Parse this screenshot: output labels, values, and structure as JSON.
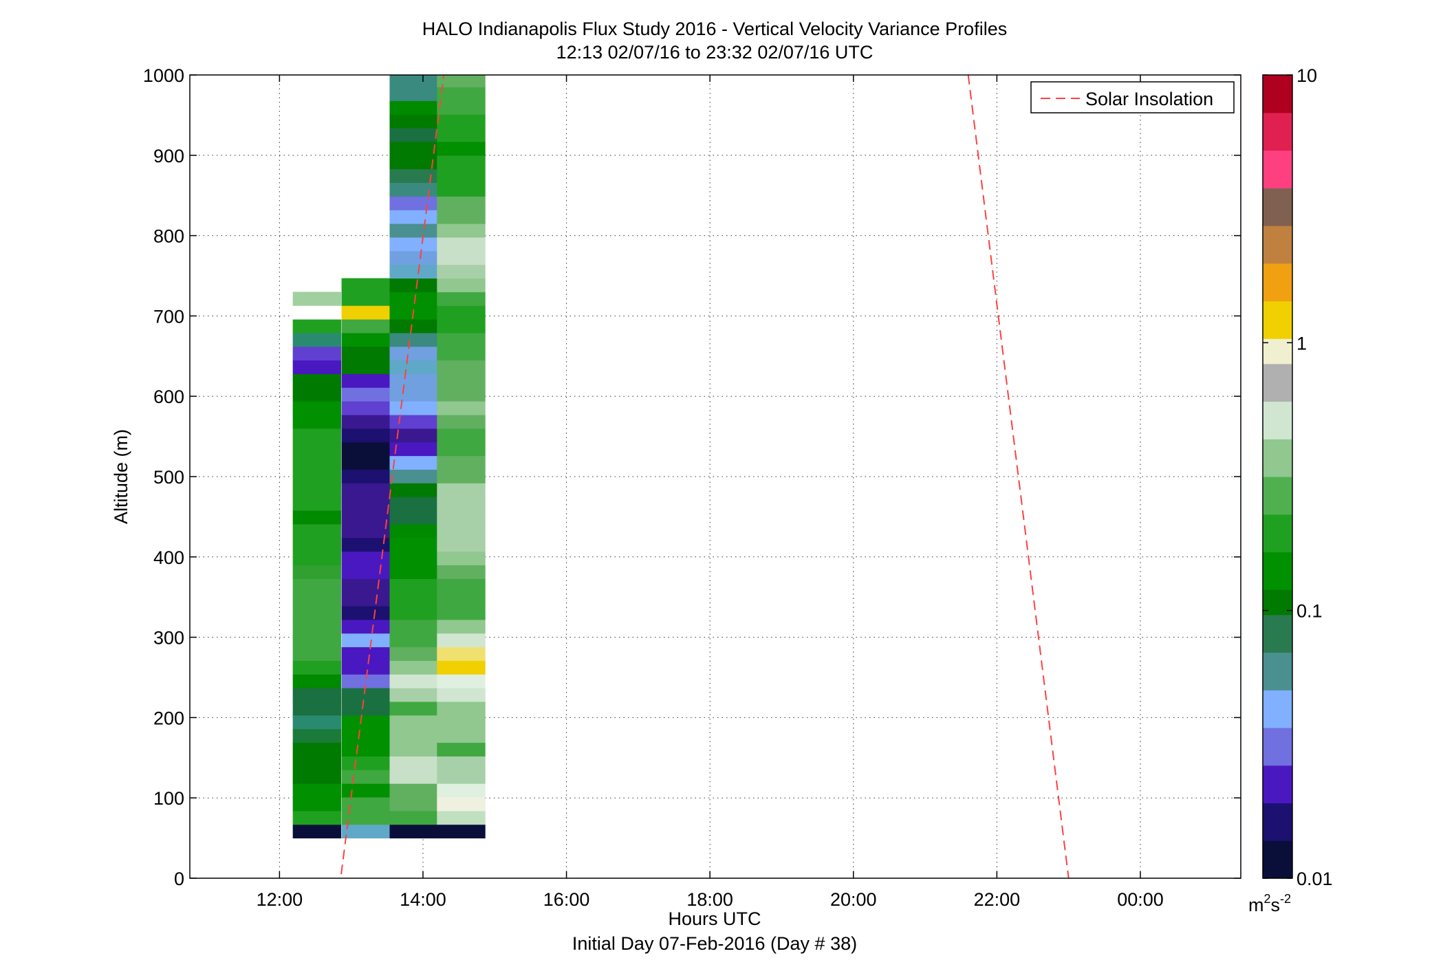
{
  "chart_data": {
    "type": "heatmap",
    "title": "HALO Indianapolis Flux Study 2016 - Vertical Velocity Variance Profiles",
    "subtitle": "12:13 02/07/16 to 23:32 02/07/16  UTC",
    "xlabel": "Hours UTC",
    "xlabel2": "Initial Day 07-Feb-2016 (Day # 38)",
    "ylabel": "Altitude (m)",
    "colorbar_units": "m²s⁻²",
    "colorbar_label_parts": {
      "m": "m",
      "sup1": "2",
      "s": "s",
      "sup2": "-2"
    },
    "xlim": [
      10.75,
      25.4
    ],
    "ylim": [
      0,
      1000
    ],
    "x_ticks": [
      {
        "value": 12,
        "label": "12:00"
      },
      {
        "value": 14,
        "label": "14:00"
      },
      {
        "value": 16,
        "label": "16:00"
      },
      {
        "value": 18,
        "label": "18:00"
      },
      {
        "value": 20,
        "label": "20:00"
      },
      {
        "value": 22,
        "label": "22:00"
      },
      {
        "value": 24,
        "label": "00:00"
      }
    ],
    "y_ticks": [
      {
        "value": 0,
        "label": "0"
      },
      {
        "value": 100,
        "label": "100"
      },
      {
        "value": 200,
        "label": "200"
      },
      {
        "value": 300,
        "label": "300"
      },
      {
        "value": 400,
        "label": "400"
      },
      {
        "value": 500,
        "label": "500"
      },
      {
        "value": 600,
        "label": "600"
      },
      {
        "value": 700,
        "label": "700"
      },
      {
        "value": 800,
        "label": "800"
      },
      {
        "value": 900,
        "label": "900"
      },
      {
        "value": 1000,
        "label": "1000"
      }
    ],
    "colorbar": {
      "scale": "log",
      "range": [
        0.01,
        10
      ],
      "ticks": [
        {
          "value": 0.01,
          "label": "0.01"
        },
        {
          "value": 0.1,
          "label": "0.1"
        },
        {
          "value": 1,
          "label": "1"
        },
        {
          "value": 10,
          "label": "10"
        }
      ],
      "colormap": [
        "#0a0f3a",
        "#1c1070",
        "#4a18c0",
        "#7070e0",
        "#80b0ff",
        "#4a9090",
        "#2a7a50",
        "#007a00",
        "#009000",
        "#20a020",
        "#50b050",
        "#90c890",
        "#d0e6d0",
        "#b0b0b0",
        "#f0f0d0",
        "#f0d000",
        "#f0a010",
        "#c08040",
        "#806050",
        "#ff4080",
        "#e02050",
        "#b00020"
      ]
    },
    "grid": true,
    "legend": {
      "position": "top-right",
      "entries": [
        {
          "label": "Solar Insolation",
          "color": "#ff4040",
          "style": "dashed"
        }
      ]
    },
    "series": [
      {
        "name": "Solar Insolation",
        "lines": [
          {
            "x": [
              12.86,
              14.29
            ],
            "y": [
              5,
              1000
            ]
          },
          {
            "x": [
              21.6,
              23.0
            ],
            "y": [
              1000,
              0
            ]
          }
        ]
      }
    ],
    "x_bins": [
      {
        "center": 12.52,
        "width": 0.67
      },
      {
        "center": 13.2,
        "width": 0.67
      },
      {
        "center": 13.87,
        "width": 0.67
      },
      {
        "center": 14.53,
        "width": 0.67
      }
    ],
    "altitude_bins": [
      50,
      67,
      83,
      100,
      117,
      133,
      150,
      167,
      183,
      200,
      217,
      233,
      250,
      267,
      283,
      300,
      317,
      333,
      350,
      367,
      383,
      400,
      417,
      433,
      450,
      467,
      483,
      500,
      517,
      533,
      550,
      567,
      583,
      600,
      617,
      633,
      650,
      667,
      683,
      700,
      717,
      733,
      750,
      767,
      783,
      800,
      817,
      833,
      850,
      867,
      883,
      900,
      917,
      933,
      950,
      967,
      983
    ],
    "columns": [
      {
        "colors": [
          "#0a0f3a",
          "#20a020",
          "#009000",
          "#009000",
          "#007a00",
          "#007a00",
          "#007a00",
          "#1a7a3a",
          "#2a8a70",
          "#1a7040",
          "#1a7040",
          "#008a00",
          "#20a020",
          "#40a840",
          "#40a840",
          "#40a840",
          "#40a840",
          "#40a840",
          "#40a840",
          "#30a030",
          "#20a020",
          "#20a020",
          "#20a020",
          "#008a00",
          "#20a020",
          "#20a020",
          "#20a020",
          "#20a020",
          "#20a020",
          "#20a020",
          "#009000",
          "#009000",
          "#007a00",
          "#007a00",
          "#4a18c0",
          "#6040d0",
          "#2a8a70",
          "#20a020",
          "#ffffff",
          "#a0d0a0"
        ]
      },
      {
        "colors": [
          "#60a8c8",
          "#40a840",
          "#40a840",
          "#009000",
          "#40a840",
          "#20a020",
          "#009000",
          "#009000",
          "#009000",
          "#1a7040",
          "#1a7040",
          "#7070e0",
          "#4a18c0",
          "#4a18c0",
          "#80b0ff",
          "#4a18c0",
          "#1c1070",
          "#3a1890",
          "#3a1890",
          "#4a18c0",
          "#4a18c0",
          "#1c1070",
          "#3a1890",
          "#3a1890",
          "#3a1890",
          "#3a1890",
          "#1c1070",
          "#0a0f3a",
          "#0a0f3a",
          "#1c1070",
          "#3a1890",
          "#6040d0",
          "#7070e0",
          "#4a18c0",
          "#007a00",
          "#007a00",
          "#009000",
          "#40a840",
          "#f0d000",
          "#20a020",
          "#20a020"
        ]
      },
      {
        "colors": [
          "#0a0f3a",
          "#40a840",
          "#60b060",
          "#60b060",
          "#c8e0c8",
          "#c8e0c8",
          "#90c890",
          "#90c890",
          "#90c890",
          "#40a840",
          "#a8d0a8",
          "#d0e6d0",
          "#90c890",
          "#60b060",
          "#40a840",
          "#40a840",
          "#20a020",
          "#20a020",
          "#20a020",
          "#009000",
          "#009000",
          "#009000",
          "#008a00",
          "#1a7040",
          "#1a7040",
          "#007a00",
          "#4a9090",
          "#80b0ff",
          "#4a18c0",
          "#3a1890",
          "#6040d0",
          "#80b0ff",
          "#70a0e0",
          "#70a0e0",
          "#60a8c8",
          "#70a0e0",
          "#3a8a80",
          "#007a00",
          "#009000",
          "#009000",
          "#007a00",
          "#60a8c8",
          "#70a0e0",
          "#80b0ff",
          "#4a9090",
          "#80b0ff",
          "#7070e0",
          "#3a8a80",
          "#2a7a50",
          "#007a00",
          "#007a00",
          "#1a7040",
          "#007a00",
          "#008a00",
          "#3a8a80",
          "#3a8a80",
          "#007a00",
          "#009000"
        ]
      },
      {
        "colors": [
          "#0a0f3a",
          "#c0e0c0",
          "#f0f0e0",
          "#e0f0e0",
          "#a8d0a8",
          "#a8d0a8",
          "#40a840",
          "#90c890",
          "#90c890",
          "#90c890",
          "#d0e6d0",
          "#e0f0e0",
          "#f0d000",
          "#f0e070",
          "#d0e6d0",
          "#90c890",
          "#40a840",
          "#40a840",
          "#40a840",
          "#60b060",
          "#90c890",
          "#a8d0a8",
          "#a8d0a8",
          "#a8d0a8",
          "#a8d0a8",
          "#a8d0a8",
          "#60b060",
          "#60b060",
          "#40a840",
          "#40a840",
          "#60b060",
          "#90c890",
          "#60b060",
          "#60b060",
          "#60b060",
          "#40a840",
          "#40a840",
          "#20a020",
          "#20a020",
          "#40a840",
          "#90c890",
          "#a8d0a8",
          "#c8e0c8",
          "#c8e0c8",
          "#90c890",
          "#60b060",
          "#60b060",
          "#20a020",
          "#20a020",
          "#20a020",
          "#009000",
          "#20a020",
          "#20a020",
          "#40a840",
          "#40a840",
          "#60b060",
          "#80c080",
          "#60b060",
          "#40a840",
          "#20a020"
        ]
      }
    ]
  }
}
